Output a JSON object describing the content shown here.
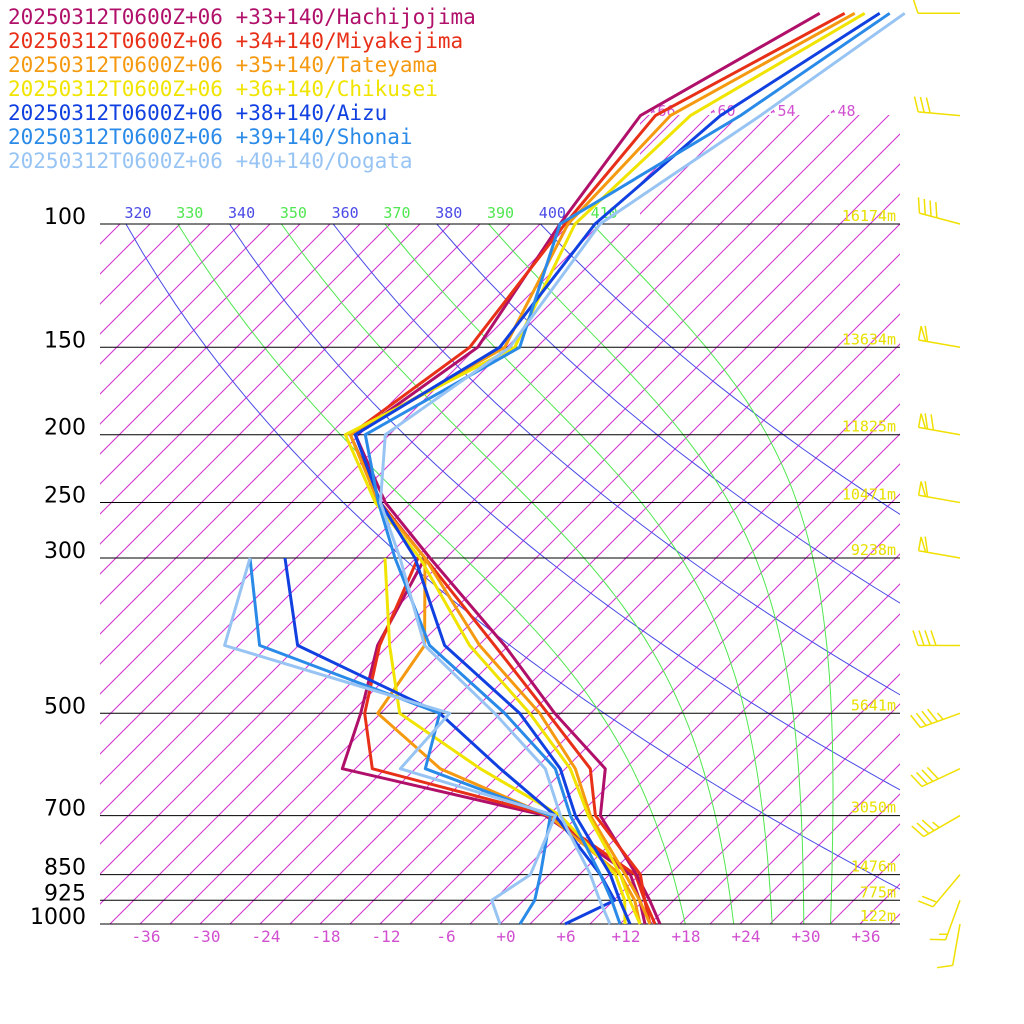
{
  "chart_data": {
    "type": "skewt",
    "log_y": true,
    "xlim": [
      -40,
      40
    ],
    "ylim": [
      1000,
      100
    ],
    "xticks": [
      -36,
      -30,
      -24,
      -18,
      -12,
      -6,
      {
        "value": 0,
        "label": "+0"
      },
      {
        "value": 6,
        "label": "+6"
      },
      {
        "value": 12,
        "label": "+12"
      },
      {
        "value": 18,
        "label": "+18"
      },
      {
        "value": 24,
        "label": "+24"
      },
      {
        "value": 30,
        "label": "+30"
      },
      {
        "value": 36,
        "label": "+36"
      }
    ],
    "yticks": [
      100,
      150,
      200,
      250,
      300,
      500,
      700,
      850,
      925,
      1000
    ],
    "height_labels": [
      "16174m",
      "13634m",
      "11825m",
      "10471m",
      "9238m",
      "5641m",
      "3050m",
      "1476m",
      "775m",
      "122m"
    ],
    "isotherm_ticks": [
      -66,
      -60,
      -54,
      -48
    ],
    "isotherms": [
      -120,
      -117,
      -114,
      -111,
      -108,
      -105,
      -102,
      -99,
      -96,
      -93,
      -90,
      -87,
      -84,
      -81,
      -78,
      -75,
      -72,
      -69,
      -66,
      -63,
      -60,
      -57,
      -54,
      -51,
      -48,
      -45,
      -42,
      -39,
      -36,
      -33,
      -30,
      -27,
      -24,
      -21,
      -18,
      -15,
      -12,
      -9,
      -6,
      -3,
      0,
      3,
      6,
      9,
      12,
      15,
      18,
      21,
      24,
      27,
      30,
      33,
      36,
      39
    ],
    "dry_adiabats": [
      320,
      340,
      360,
      380,
      400
    ],
    "moist_adiabats": [
      330,
      350,
      370,
      390,
      410
    ],
    "levels": [
      1000,
      925,
      850,
      700,
      600,
      500,
      400,
      300,
      250,
      200,
      150,
      100,
      70,
      50
    ],
    "wind_direction": [
      190,
      200,
      220,
      240,
      245,
      250,
      270,
      280,
      280,
      280,
      280,
      285,
      275,
      270
    ],
    "wind_speed": [
      10,
      15,
      20,
      35,
      40,
      45,
      40,
      60,
      60,
      70,
      60,
      40,
      30,
      10
    ],
    "wind_color": "#f0e000",
    "series": [
      {
        "name": "20250312T0600Z+06 +33+140/Hachijojima",
        "color": "#b0106a",
        "temperature": [
          16.0,
          12.6,
          8.7,
          -0.8,
          -5.0,
          -15.6,
          -27.4,
          -43.6,
          -53.6,
          -63.4,
          -59.9,
          -64.0,
          -66.8,
          -59.1
        ],
        "dewpoint": [
          14.5,
          11.6,
          8.1,
          -6.3,
          -31.3,
          -35.0,
          -40.1,
          -44.1,
          null,
          null,
          null,
          null,
          null,
          null
        ]
      },
      {
        "name": "20250312T0600Z+06 +34+140/Miyakejima",
        "color": "#e83018",
        "temperature": [
          15.5,
          12.1,
          9.1,
          -1.3,
          -6.5,
          -16.3,
          -28.4,
          -44.1,
          -54.1,
          -63.9,
          -60.7,
          -63.5,
          -65.3,
          -56.6
        ],
        "dewpoint": [
          15.0,
          12.1,
          8.6,
          -5.8,
          -28.3,
          -34.6,
          -39.9,
          -44.8,
          null,
          null,
          null,
          null,
          null,
          null
        ]
      },
      {
        "name": "20250312T0600Z+06 +35+140/Tateyama",
        "color": "#f59a10",
        "temperature": [
          15.0,
          11.6,
          7.6,
          -1.8,
          -8.0,
          -17.1,
          -29.9,
          -44.1,
          -54.3,
          -63.9,
          -57.2,
          -63.2,
          -63.8,
          -55.6
        ],
        "dewpoint": [
          14.0,
          11.1,
          7.1,
          -6.0,
          -21.5,
          -33.3,
          -35.4,
          -44.1,
          null,
          null,
          null,
          null,
          null,
          null
        ]
      },
      {
        "name": "20250312T0600Z+06 +36+140/Chikusei",
        "color": "#f0e400",
        "temperature": [
          14.0,
          10.6,
          7.1,
          -2.0,
          -8.5,
          -18.1,
          -30.9,
          -44.6,
          -54.6,
          -64.4,
          -56.2,
          -62.5,
          -61.8,
          -54.6
        ],
        "dewpoint": [
          12.5,
          10.1,
          6.6,
          -4.8,
          -17.5,
          -31.1,
          -38.9,
          -48.1,
          null,
          null,
          null,
          null,
          null,
          null
        ]
      },
      {
        "name": "20250312T0600Z+06 +38+140/Aizu",
        "color": "#1040e0",
        "temperature": [
          13.0,
          9.6,
          6.1,
          -3.3,
          -9.5,
          -19.1,
          -33.4,
          -45.1,
          -54.1,
          -63.4,
          -57.7,
          -60.5,
          -58.8,
          -53.1
        ],
        "dewpoint": [
          6.5,
          9.1,
          5.1,
          -5.3,
          -15.5,
          -27.1,
          -48.1,
          -58.1,
          null,
          null,
          null,
          null,
          null,
          null
        ]
      },
      {
        "name": "20250312T0600Z+06 +39+140/Shonai",
        "color": "#2a8ae8",
        "temperature": [
          12.0,
          8.8,
          5.1,
          -3.8,
          -10.0,
          -20.6,
          -34.9,
          -47.1,
          -54.3,
          -62.4,
          -55.7,
          -64.0,
          -56.8,
          -52.1
        ],
        "dewpoint": [
          2.0,
          1.1,
          -0.9,
          -5.8,
          -23.0,
          -27.1,
          -51.9,
          -61.6,
          null,
          null,
          null,
          null,
          null,
          null
        ]
      },
      {
        "name": "20250312T0600Z+06 +40+140/Oogata",
        "color": "#98c4f4",
        "temperature": [
          11.0,
          7.6,
          4.1,
          -4.8,
          -11.0,
          -21.6,
          -35.4,
          -46.6,
          -54.1,
          -60.4,
          -56.7,
          -60.0,
          -54.8,
          -50.6
        ],
        "dewpoint": [
          0.0,
          -3.2,
          -1.9,
          -5.3,
          -25.5,
          -26.1,
          -55.4,
          -61.6,
          null,
          null,
          null,
          null,
          null,
          null
        ]
      }
    ]
  }
}
